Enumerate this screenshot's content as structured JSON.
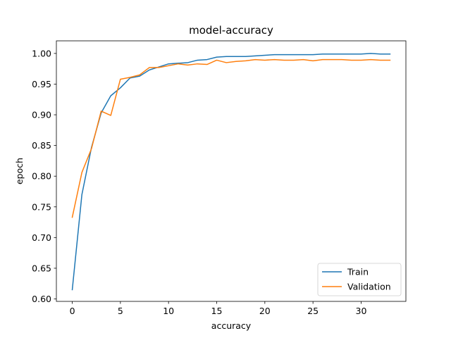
{
  "chart_data": {
    "type": "line",
    "title": "model-accuracy",
    "xlabel": "accuracy",
    "ylabel": "epoch",
    "xlim": [
      -1.65,
      34.65
    ],
    "ylim": [
      0.596,
      1.0205
    ],
    "x_ticks": [
      0,
      5,
      10,
      15,
      20,
      25,
      30
    ],
    "y_ticks": [
      0.6,
      0.65,
      0.7,
      0.75,
      0.8,
      0.85,
      0.9,
      0.95,
      1.0
    ],
    "grid": false,
    "legend": "lower-right",
    "x": [
      0,
      1,
      2,
      3,
      4,
      5,
      6,
      7,
      8,
      9,
      10,
      11,
      12,
      13,
      14,
      15,
      16,
      17,
      18,
      19,
      20,
      21,
      22,
      23,
      24,
      25,
      26,
      27,
      28,
      29,
      30,
      31,
      32,
      33
    ],
    "series": [
      {
        "name": "Train",
        "color": "#1f77b4",
        "values": [
          0.615,
          0.77,
          0.847,
          0.903,
          0.931,
          0.944,
          0.96,
          0.963,
          0.973,
          0.978,
          0.983,
          0.984,
          0.985,
          0.989,
          0.99,
          0.994,
          0.995,
          0.995,
          0.995,
          0.996,
          0.997,
          0.998,
          0.998,
          0.998,
          0.998,
          0.998,
          0.999,
          0.999,
          0.999,
          0.999,
          0.999,
          1.0,
          0.999,
          0.999
        ]
      },
      {
        "name": "Validation",
        "color": "#ff7f0e",
        "values": [
          0.733,
          0.806,
          0.845,
          0.906,
          0.899,
          0.958,
          0.961,
          0.965,
          0.977,
          0.977,
          0.98,
          0.983,
          0.981,
          0.983,
          0.982,
          0.989,
          0.985,
          0.987,
          0.988,
          0.99,
          0.989,
          0.99,
          0.989,
          0.989,
          0.99,
          0.988,
          0.99,
          0.99,
          0.99,
          0.989,
          0.989,
          0.99,
          0.989,
          0.989
        ]
      }
    ]
  }
}
